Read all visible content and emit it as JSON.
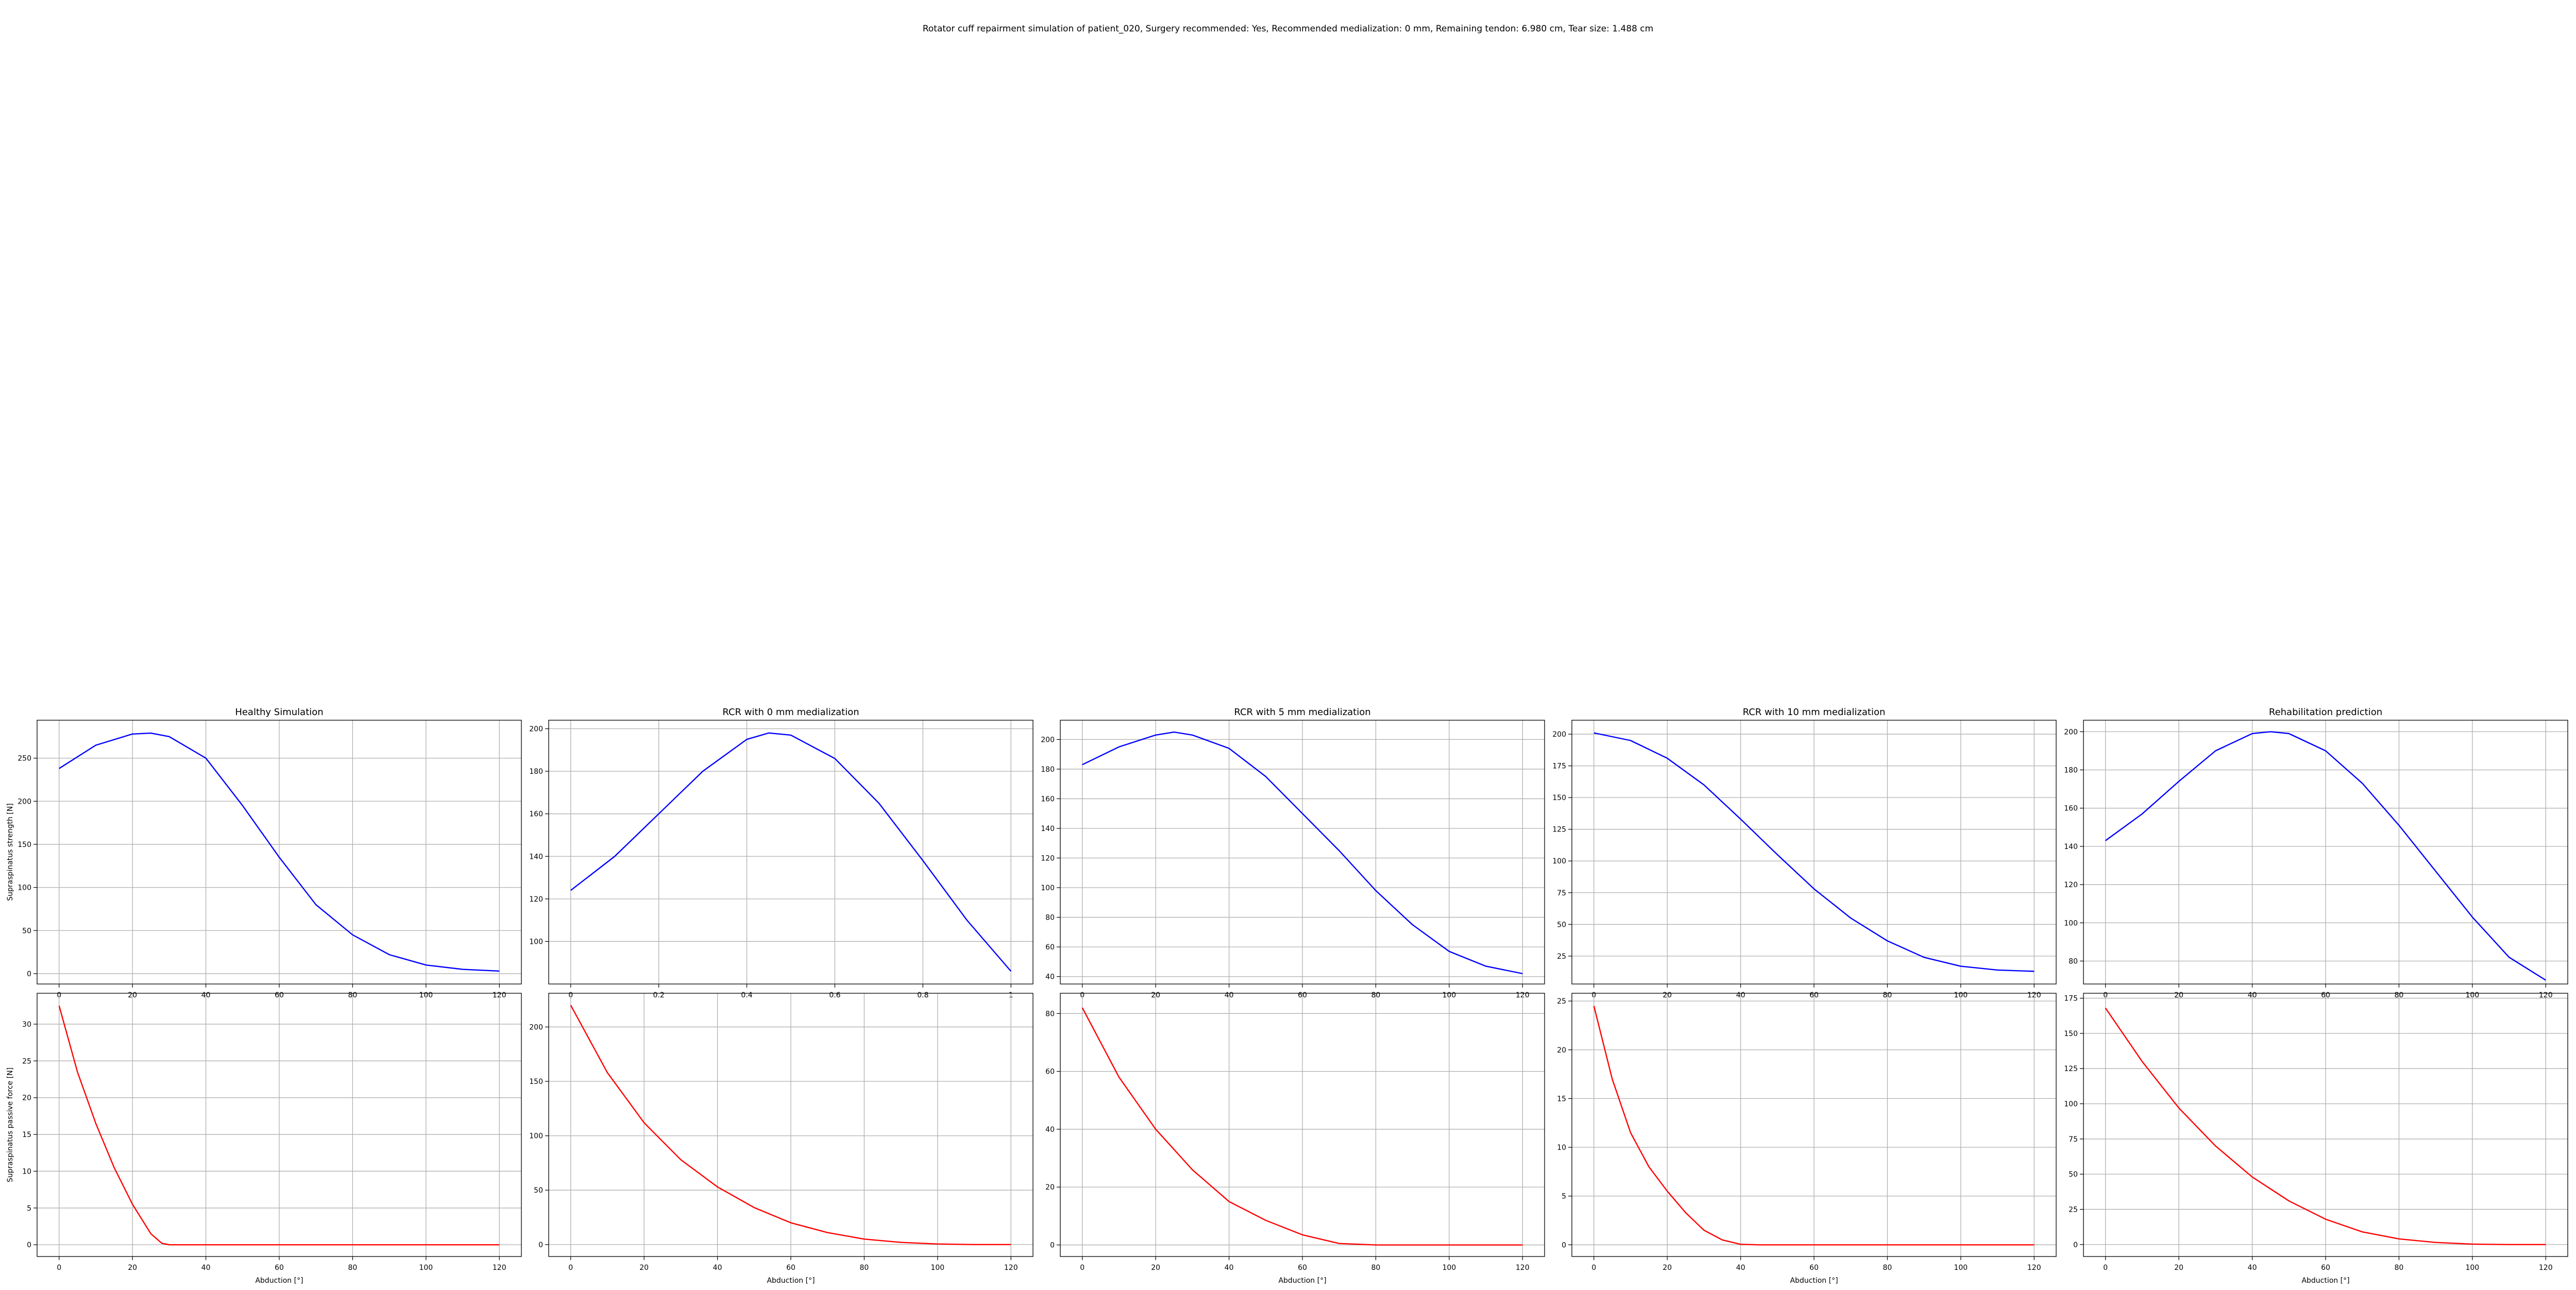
{
  "figure": {
    "suptitle": "Rotator cuff repairment simulation of patient_020, Surgery recommended: Yes, Recommended medialization: 0 mm, Remaining tendon: 6.980 cm, Tear size: 1.488 cm"
  },
  "colors": {
    "strength": "#0000ff",
    "passive": "#ff0000",
    "grid": "#b0b0b0"
  },
  "chart_data": [
    {
      "type": "line",
      "panel": "top-1",
      "title": "Healthy Simulation",
      "xlabel": "",
      "ylabel": "Supraspinatus strength [N]",
      "xlim": [
        -6,
        126
      ],
      "ylim": [
        -12,
        294
      ],
      "xticks": [
        0,
        20,
        40,
        60,
        80,
        100,
        120
      ],
      "yticks": [
        0,
        50,
        100,
        150,
        200,
        250
      ],
      "series": [
        {
          "color": "blue",
          "x": [
            0,
            10,
            20,
            25,
            30,
            40,
            50,
            60,
            70,
            80,
            90,
            100,
            110,
            120
          ],
          "y": [
            238,
            265,
            278,
            279,
            275,
            250,
            195,
            135,
            80,
            45,
            22,
            10,
            5,
            3
          ]
        }
      ]
    },
    {
      "type": "line",
      "panel": "top-2",
      "title": "RCR with 0 mm medialization",
      "xlabel": "",
      "ylabel": "",
      "xlim": [
        -0.05,
        1.05
      ],
      "ylim": [
        80,
        204
      ],
      "xticks": [
        0.0,
        0.2,
        0.4,
        0.6,
        0.8,
        1.0
      ],
      "yticks": [
        100,
        120,
        140,
        160,
        180,
        200
      ],
      "series": [
        {
          "color": "blue",
          "x": [
            0,
            0.1,
            0.2,
            0.3,
            0.4,
            0.45,
            0.5,
            0.6,
            0.7,
            0.8,
            0.9,
            1.0
          ],
          "y": [
            124,
            140,
            160,
            180,
            195,
            198,
            197,
            186,
            165,
            138,
            110,
            86
          ]
        }
      ]
    },
    {
      "type": "line",
      "panel": "top-3",
      "title": "RCR with 5 mm medialization",
      "xlabel": "",
      "ylabel": "",
      "xlim": [
        -6,
        126
      ],
      "ylim": [
        35,
        213
      ],
      "xticks": [
        0,
        20,
        40,
        60,
        80,
        100,
        120
      ],
      "yticks": [
        40,
        60,
        80,
        100,
        120,
        140,
        160,
        180,
        200
      ],
      "series": [
        {
          "color": "blue",
          "x": [
            0,
            10,
            20,
            25,
            30,
            40,
            50,
            60,
            70,
            80,
            90,
            100,
            110,
            120
          ],
          "y": [
            183,
            195,
            203,
            205,
            203,
            194,
            175,
            150,
            125,
            98,
            75,
            57,
            47,
            42
          ]
        }
      ]
    },
    {
      "type": "line",
      "panel": "top-4",
      "title": "RCR with 10 mm medialization",
      "xlabel": "",
      "ylabel": "",
      "xlim": [
        -6,
        126
      ],
      "ylim": [
        3,
        211
      ],
      "xticks": [
        0,
        20,
        40,
        60,
        80,
        100,
        120
      ],
      "yticks": [
        25,
        50,
        75,
        100,
        125,
        150,
        175,
        200
      ],
      "series": [
        {
          "color": "blue",
          "x": [
            0,
            10,
            20,
            30,
            40,
            50,
            60,
            70,
            80,
            90,
            100,
            110,
            120
          ],
          "y": [
            201,
            195,
            181,
            160,
            133,
            105,
            78,
            55,
            37,
            24,
            17,
            14,
            13
          ]
        }
      ]
    },
    {
      "type": "line",
      "panel": "top-5",
      "title": "Rehabilitation prediction",
      "xlabel": "",
      "ylabel": "",
      "xlim": [
        -6,
        126
      ],
      "ylim": [
        68,
        206
      ],
      "xticks": [
        0,
        20,
        40,
        60,
        80,
        100,
        120
      ],
      "yticks": [
        80,
        100,
        120,
        140,
        160,
        180,
        200
      ],
      "series": [
        {
          "color": "blue",
          "x": [
            0,
            10,
            20,
            30,
            40,
            45,
            50,
            60,
            70,
            80,
            90,
            100,
            110,
            120
          ],
          "y": [
            143,
            157,
            174,
            190,
            199,
            200,
            199,
            190,
            173,
            151,
            127,
            103,
            82,
            70
          ]
        }
      ]
    },
    {
      "type": "line",
      "panel": "bottom-1",
      "title": "",
      "xlabel": "Abduction [°]",
      "ylabel": "Supraspinatus passive force [N]",
      "xlim": [
        -6,
        126
      ],
      "ylim": [
        -1.6,
        34.2
      ],
      "xticks": [
        0,
        20,
        40,
        60,
        80,
        100,
        120
      ],
      "yticks": [
        0,
        5,
        10,
        15,
        20,
        25,
        30
      ],
      "series": [
        {
          "color": "red",
          "x": [
            0,
            5,
            10,
            15,
            20,
            25,
            28,
            30,
            40,
            60,
            80,
            100,
            120
          ],
          "y": [
            32.5,
            23.5,
            16.5,
            10.5,
            5.5,
            1.5,
            0.2,
            0,
            0,
            0,
            0,
            0,
            0
          ]
        }
      ]
    },
    {
      "type": "line",
      "panel": "bottom-2",
      "title": "",
      "xlabel": "Abduction [°]",
      "ylabel": "",
      "xlim": [
        -6,
        126
      ],
      "ylim": [
        -11,
        231
      ],
      "xticks": [
        0,
        20,
        40,
        60,
        80,
        100,
        120
      ],
      "yticks": [
        0,
        50,
        100,
        150,
        200
      ],
      "series": [
        {
          "color": "red",
          "x": [
            0,
            10,
            20,
            30,
            40,
            50,
            60,
            70,
            80,
            90,
            100,
            110,
            120
          ],
          "y": [
            220,
            158,
            112,
            78,
            53,
            34,
            20,
            11,
            5,
            2,
            0.5,
            0,
            0
          ]
        }
      ]
    },
    {
      "type": "line",
      "panel": "bottom-3",
      "title": "",
      "xlabel": "Abduction [°]",
      "ylabel": "",
      "xlim": [
        -6,
        126
      ],
      "ylim": [
        -4,
        87
      ],
      "xticks": [
        0,
        20,
        40,
        60,
        80,
        100,
        120
      ],
      "yticks": [
        0,
        20,
        40,
        60,
        80
      ],
      "series": [
        {
          "color": "red",
          "x": [
            0,
            10,
            20,
            30,
            40,
            50,
            60,
            70,
            80,
            90,
            100,
            110,
            120
          ],
          "y": [
            82,
            58,
            40,
            26,
            15,
            8.5,
            3.5,
            0.5,
            0,
            0,
            0,
            0,
            0
          ]
        }
      ]
    },
    {
      "type": "line",
      "panel": "bottom-4",
      "title": "",
      "xlabel": "Abduction [°]",
      "ylabel": "",
      "xlim": [
        -6,
        126
      ],
      "ylim": [
        -1.2,
        25.8
      ],
      "xticks": [
        0,
        20,
        40,
        60,
        80,
        100,
        120
      ],
      "yticks": [
        0,
        5,
        10,
        15,
        20,
        25
      ],
      "series": [
        {
          "color": "red",
          "x": [
            0,
            5,
            10,
            15,
            20,
            25,
            30,
            35,
            40,
            45,
            50,
            60,
            80,
            100,
            120
          ],
          "y": [
            24.5,
            17,
            11.5,
            8,
            5.5,
            3.3,
            1.5,
            0.5,
            0.05,
            0,
            0,
            0,
            0,
            0,
            0
          ]
        }
      ]
    },
    {
      "type": "line",
      "panel": "bottom-5",
      "title": "",
      "xlabel": "Abduction [°]",
      "ylabel": "",
      "xlim": [
        -6,
        126
      ],
      "ylim": [
        -8.5,
        178.5
      ],
      "xticks": [
        0,
        20,
        40,
        60,
        80,
        100,
        120
      ],
      "yticks": [
        0,
        25,
        50,
        75,
        100,
        125,
        150,
        175
      ],
      "series": [
        {
          "color": "red",
          "x": [
            0,
            10,
            20,
            30,
            40,
            50,
            60,
            70,
            80,
            90,
            100,
            110,
            120
          ],
          "y": [
            168,
            130,
            97,
            70,
            48,
            31,
            18,
            9,
            4,
            1.5,
            0.3,
            0,
            0
          ]
        }
      ]
    }
  ]
}
